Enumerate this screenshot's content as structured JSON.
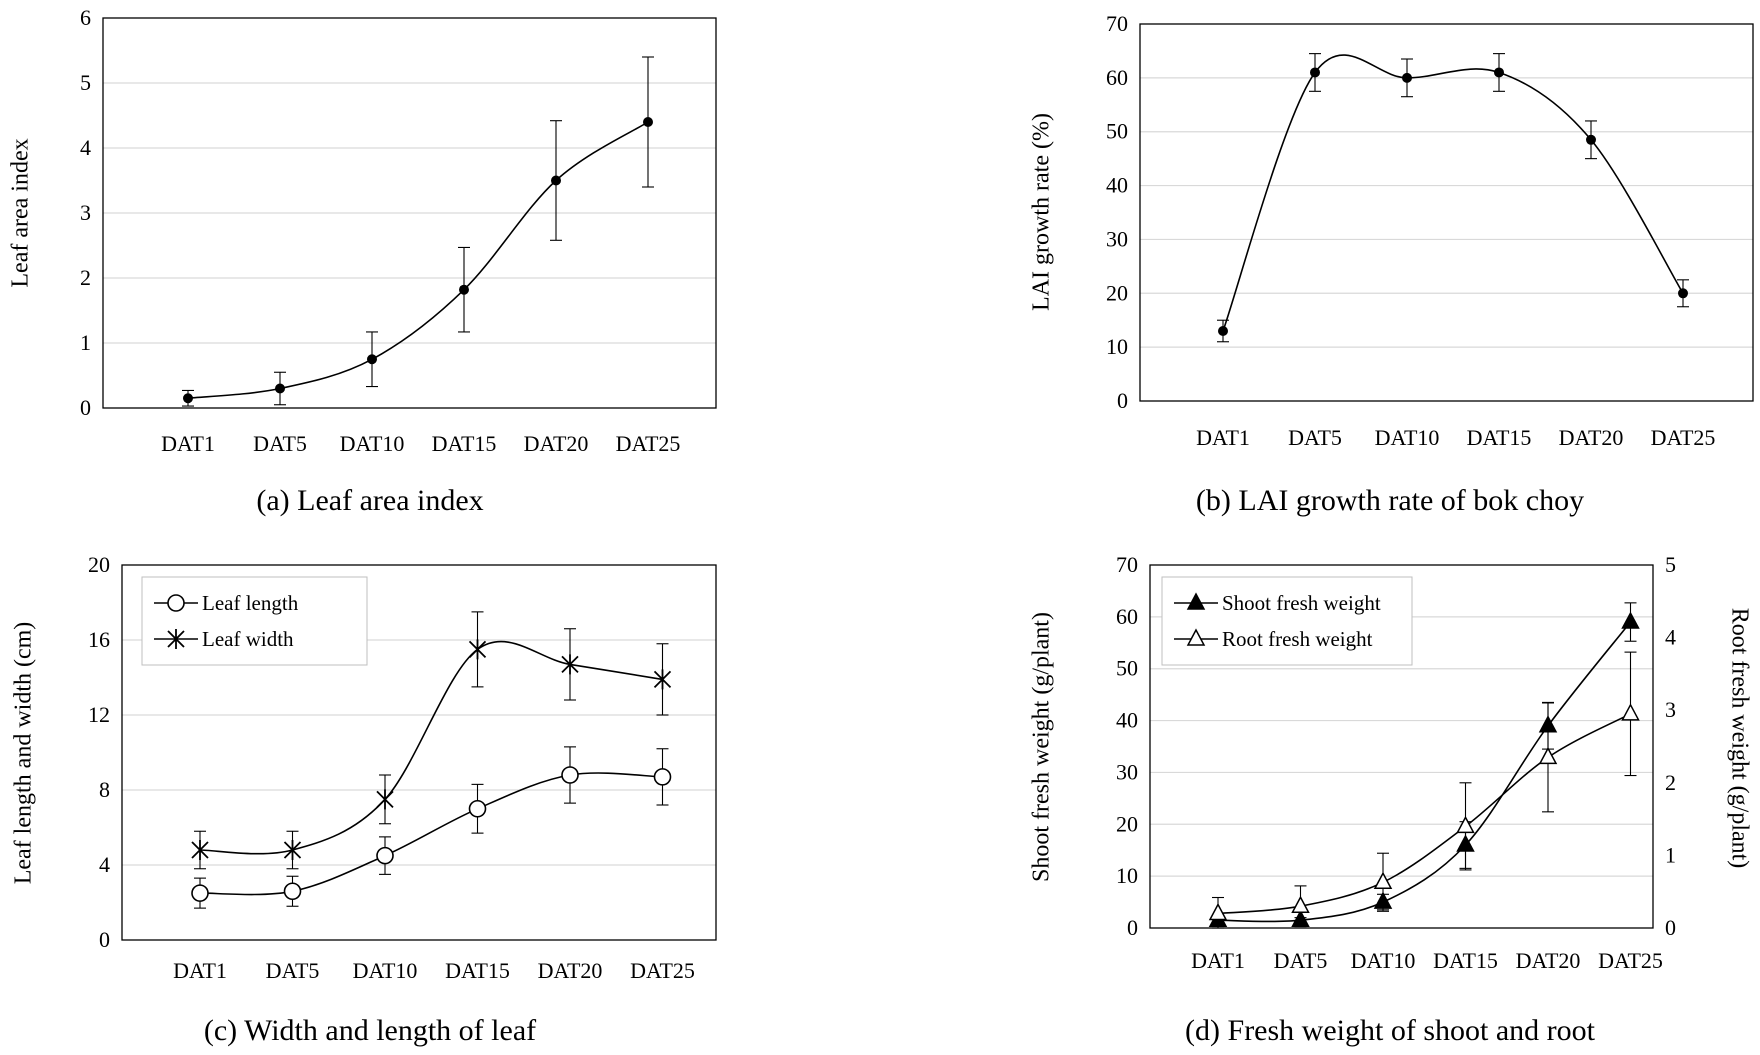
{
  "categories": [
    "DAT1",
    "DAT5",
    "DAT10",
    "DAT15",
    "DAT20",
    "DAT25"
  ],
  "chart_data": [
    {
      "id": "a",
      "type": "line",
      "caption": "(a) Leaf area index",
      "ylabel": "Leaf area index",
      "ylim": [
        0,
        6
      ],
      "yticks": [
        "0",
        "1",
        "2",
        "3",
        "4",
        "5",
        "6"
      ],
      "grid": true,
      "series": [
        {
          "values": [
            0.15,
            0.3,
            0.75,
            1.82,
            3.5,
            4.4
          ],
          "errors": [
            0.12,
            0.25,
            0.42,
            0.65,
            0.92,
            1.0
          ],
          "marker": "dot"
        }
      ]
    },
    {
      "id": "b",
      "type": "line",
      "caption": "(b) LAI growth rate of bok choy",
      "ylabel": "LAI growth rate (%)",
      "ylim": [
        0,
        70
      ],
      "yticks": [
        "0",
        "10",
        "20",
        "30",
        "40",
        "50",
        "60",
        "70"
      ],
      "grid": true,
      "series": [
        {
          "values": [
            13,
            61,
            60,
            61,
            48.5,
            20
          ],
          "errors": [
            2,
            3.5,
            3.5,
            3.5,
            3.5,
            2.5
          ],
          "marker": "dot",
          "x_index": [
            0,
            1,
            2,
            3,
            4,
            5
          ]
        }
      ]
    },
    {
      "id": "c",
      "type": "line",
      "caption": "(c) Width and length of leaf",
      "ylabel": "Leaf length and width (cm)",
      "ylim": [
        0,
        20
      ],
      "yticks": [
        "0",
        "4",
        "8",
        "12",
        "16",
        "20"
      ],
      "grid": true,
      "legend": "top-left",
      "series": [
        {
          "name": "Leaf length",
          "values": [
            2.5,
            2.6,
            4.5,
            7.0,
            8.8,
            8.7
          ],
          "errors": [
            0.8,
            0.8,
            1.0,
            1.3,
            1.5,
            1.5
          ],
          "marker": "circle"
        },
        {
          "name": "Leaf width",
          "values": [
            4.8,
            4.8,
            7.5,
            15.5,
            14.7,
            13.9
          ],
          "errors": [
            1.0,
            1.0,
            1.3,
            2.0,
            1.9,
            1.9
          ],
          "marker": "star"
        }
      ]
    },
    {
      "id": "d",
      "type": "line",
      "caption": "(d) Fresh weight of shoot and root",
      "ylabel": "Shoot fresh weight (g/plant)",
      "ylabel_right": "Root fresh weight (g/plant)",
      "ylim": [
        0,
        70
      ],
      "ylim_right": [
        0,
        5
      ],
      "yticks": [
        "0",
        "10",
        "20",
        "30",
        "40",
        "50",
        "60",
        "70"
      ],
      "yticks_right": [
        "0",
        "1",
        "2",
        "3",
        "4",
        "5"
      ],
      "grid": true,
      "legend": "top-left",
      "series": [
        {
          "name": "Shoot fresh weight",
          "axis": "left",
          "values": [
            1.5,
            1.5,
            5.0,
            16.0,
            39.0,
            59.0
          ],
          "errors": [
            0.5,
            0.5,
            1.5,
            4.5,
            4.5,
            3.7
          ],
          "marker": "filled-triangle"
        },
        {
          "name": "Root fresh weight",
          "axis": "right",
          "values": [
            0.2,
            0.3,
            0.63,
            1.4,
            2.35,
            2.95
          ],
          "errors": [
            0.22,
            0.28,
            0.4,
            0.6,
            0.75,
            0.85
          ],
          "marker": "open-triangle"
        }
      ]
    }
  ]
}
